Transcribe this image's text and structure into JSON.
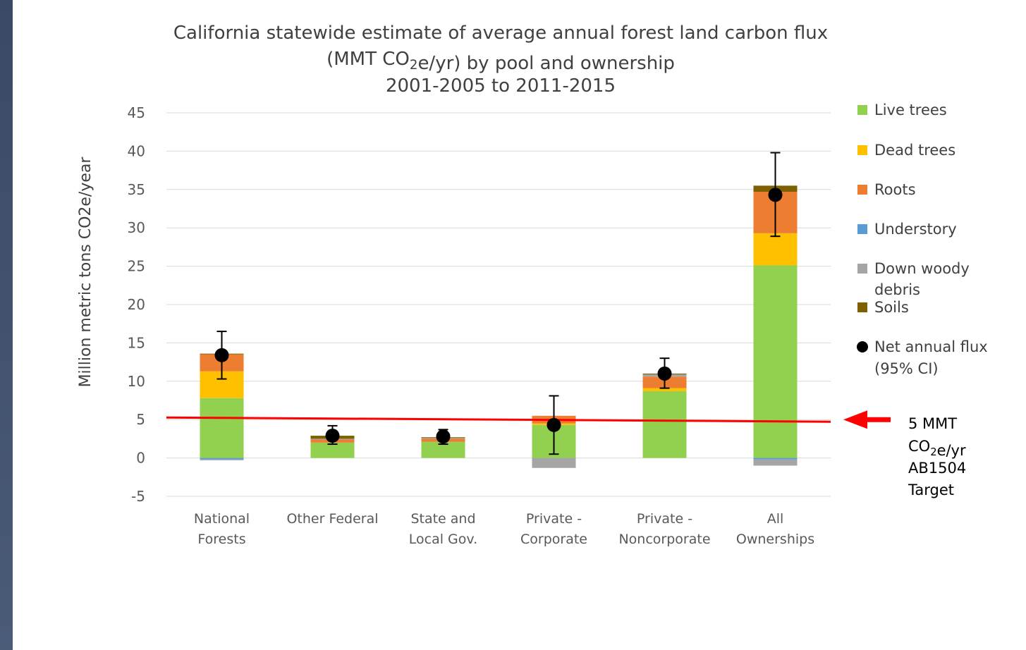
{
  "chart_data": {
    "type": "bar",
    "stacked": true,
    "title_lines": [
      "California statewide estimate of average annual forest land carbon flux",
      "(MMT CO2e/yr) by pool and ownership",
      "2001-2005 to 2011-2015"
    ],
    "ylabel": "Million metric tons CO2e/year",
    "xlabel": "",
    "ylim": [
      -5,
      45
    ],
    "yticks": [
      -5,
      0,
      5,
      10,
      15,
      20,
      25,
      30,
      35,
      40,
      45
    ],
    "grid": true,
    "legend_position": "right",
    "categories": [
      [
        "National",
        "Forests"
      ],
      [
        "Other Federal",
        ""
      ],
      [
        "State and",
        "Local Gov."
      ],
      [
        "Private -",
        "Corporate"
      ],
      [
        "Private -",
        "Noncorporate"
      ],
      [
        "All",
        "Ownerships"
      ]
    ],
    "series": [
      {
        "name": "Live trees",
        "color": "#92d050",
        "values": [
          7.8,
          2.0,
          2.1,
          4.3,
          8.7,
          25.1
        ]
      },
      {
        "name": "Dead trees",
        "color": "#ffc000",
        "values": [
          3.5,
          0.0,
          0.0,
          0.2,
          0.4,
          4.2
        ]
      },
      {
        "name": "Roots",
        "color": "#ed7d31",
        "values": [
          2.2,
          0.4,
          0.4,
          1.0,
          1.5,
          5.4
        ]
      },
      {
        "name": "Understory",
        "color": "#5b9bd5",
        "values": [
          -0.2,
          0.0,
          0.0,
          0.0,
          0.0,
          -0.2
        ]
      },
      {
        "name": "Down woody debris",
        "color": "#a5a5a5",
        "values": [
          -0.1,
          0.1,
          0.1,
          -1.3,
          0.3,
          -0.8
        ]
      },
      {
        "name": "Soils",
        "color": "#7f6000",
        "values": [
          0.1,
          0.4,
          0.1,
          0.0,
          0.1,
          0.8
        ]
      }
    ],
    "net_flux": {
      "name": "Net annual flux (95% CI)",
      "color": "#000000",
      "values": [
        13.4,
        2.9,
        2.8,
        4.3,
        11.0,
        34.3
      ],
      "ci_low": [
        10.3,
        1.8,
        1.8,
        0.5,
        9.1,
        28.9
      ],
      "ci_high": [
        16.5,
        4.2,
        3.7,
        8.1,
        13.0,
        39.8
      ]
    },
    "reference_line": {
      "value": 5,
      "color": "#ff0000",
      "label_lines": [
        "5 MMT",
        "CO2e/yr",
        "AB1504",
        "Target"
      ]
    }
  }
}
